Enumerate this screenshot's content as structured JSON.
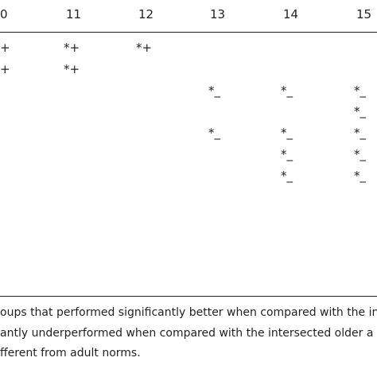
{
  "table": {
    "header": [
      "0",
      "11",
      "12",
      "13",
      "14",
      "15"
    ],
    "rows": [
      [
        "+",
        "*+",
        "*+",
        null,
        null,
        null
      ],
      [
        "+",
        "*+",
        null,
        null,
        null,
        null
      ],
      [
        null,
        null,
        null,
        "*_",
        "*_",
        "*_"
      ],
      [
        null,
        null,
        null,
        null,
        null,
        "*_"
      ],
      [
        null,
        null,
        null,
        "*_",
        "*_",
        "*_"
      ],
      [
        null,
        null,
        null,
        null,
        "*_",
        "*_"
      ],
      [
        null,
        null,
        null,
        null,
        "*_",
        "*_"
      ]
    ]
  },
  "footnotes": [
    "oups that performed significantly better when compared with the int",
    "antly underperformed when compared with the intersected older a",
    "fferent from adult norms."
  ]
}
